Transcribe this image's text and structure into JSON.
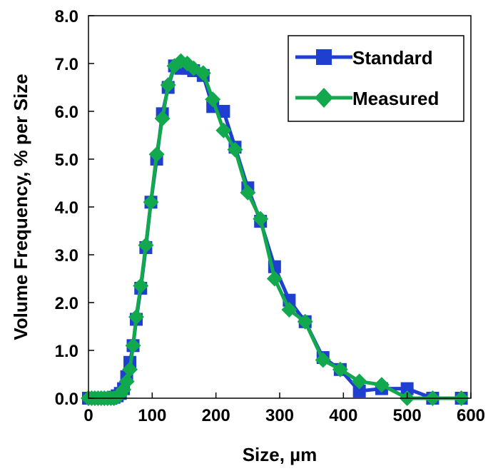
{
  "chart_data": {
    "type": "line",
    "xlabel": "Size, µm",
    "ylabel": "Volume Frequency, % per Size",
    "xlim": [
      0,
      600
    ],
    "ylim": [
      0,
      8
    ],
    "x_ticks": [
      "0",
      "100",
      "200",
      "300",
      "400",
      "500",
      "600"
    ],
    "y_ticks": [
      "0.0",
      "1.0",
      "2.0",
      "3.0",
      "4.0",
      "5.0",
      "6.0",
      "7.0",
      "8.0"
    ],
    "grid": false,
    "legend_position": "top-right",
    "series": [
      {
        "name": "Standard",
        "color": "#1f3fd1",
        "marker": "square",
        "points": [
          [
            0,
            0.0
          ],
          [
            5,
            0.0
          ],
          [
            10,
            0.0
          ],
          [
            15,
            0.0
          ],
          [
            20,
            0.0
          ],
          [
            25,
            0.0
          ],
          [
            30,
            0.0
          ],
          [
            35,
            0.0
          ],
          [
            40,
            0.02
          ],
          [
            45,
            0.05
          ],
          [
            50,
            0.1
          ],
          [
            55,
            0.2
          ],
          [
            60,
            0.45
          ],
          [
            65,
            0.75
          ],
          [
            70,
            1.1
          ],
          [
            75,
            1.65
          ],
          [
            82,
            2.3
          ],
          [
            90,
            3.15
          ],
          [
            98,
            4.1
          ],
          [
            107,
            5.0
          ],
          [
            116,
            5.95
          ],
          [
            125,
            6.5
          ],
          [
            135,
            6.95
          ],
          [
            145,
            6.9
          ],
          [
            155,
            6.9
          ],
          [
            165,
            6.85
          ],
          [
            180,
            6.75
          ],
          [
            195,
            6.1
          ],
          [
            212,
            6.0
          ],
          [
            230,
            5.25
          ],
          [
            250,
            4.4
          ],
          [
            270,
            3.7
          ],
          [
            292,
            2.75
          ],
          [
            315,
            2.05
          ],
          [
            340,
            1.6
          ],
          [
            368,
            0.85
          ],
          [
            395,
            0.6
          ],
          [
            425,
            0.15
          ],
          [
            460,
            0.2
          ],
          [
            500,
            0.2
          ],
          [
            540,
            0.0
          ],
          [
            585,
            0.0
          ]
        ]
      },
      {
        "name": "Measured",
        "color": "#11a84e",
        "marker": "diamond",
        "points": [
          [
            0,
            0.0
          ],
          [
            5,
            0.0
          ],
          [
            10,
            0.0
          ],
          [
            15,
            0.0
          ],
          [
            20,
            0.0
          ],
          [
            25,
            0.0
          ],
          [
            30,
            0.0
          ],
          [
            35,
            0.0
          ],
          [
            40,
            0.0
          ],
          [
            45,
            0.03
          ],
          [
            50,
            0.08
          ],
          [
            55,
            0.18
          ],
          [
            60,
            0.35
          ],
          [
            65,
            0.6
          ],
          [
            70,
            1.1
          ],
          [
            75,
            1.7
          ],
          [
            82,
            2.35
          ],
          [
            90,
            3.2
          ],
          [
            98,
            4.1
          ],
          [
            107,
            5.1
          ],
          [
            116,
            5.85
          ],
          [
            125,
            6.55
          ],
          [
            135,
            6.95
          ],
          [
            145,
            7.05
          ],
          [
            155,
            7.0
          ],
          [
            165,
            6.9
          ],
          [
            180,
            6.8
          ],
          [
            195,
            6.25
          ],
          [
            212,
            5.6
          ],
          [
            230,
            5.2
          ],
          [
            250,
            4.3
          ],
          [
            270,
            3.75
          ],
          [
            292,
            2.5
          ],
          [
            315,
            1.85
          ],
          [
            340,
            1.6
          ],
          [
            368,
            0.8
          ],
          [
            395,
            0.6
          ],
          [
            425,
            0.35
          ],
          [
            460,
            0.28
          ],
          [
            500,
            0.0
          ],
          [
            540,
            0.0
          ],
          [
            585,
            0.0
          ]
        ]
      }
    ]
  }
}
